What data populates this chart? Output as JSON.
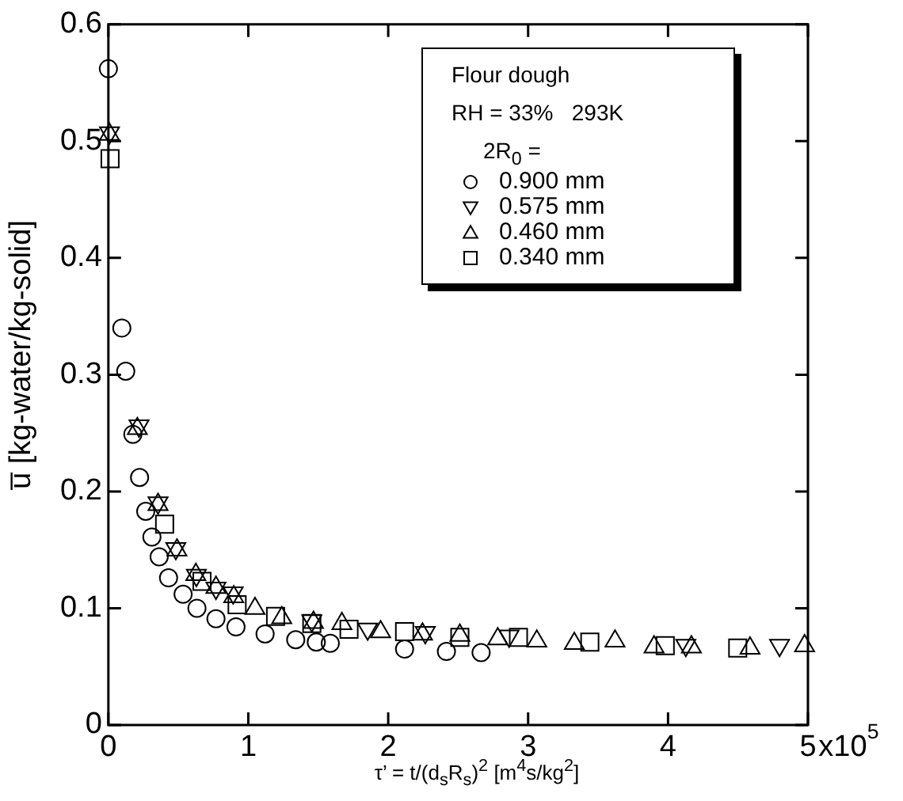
{
  "chart_data": {
    "type": "scatter",
    "xlabel": "τ’ = t/(d$_{s}$R$_{s}$)$^{2}$    [m$^{4}$s/kg$^{2}$]",
    "ylabel": "u̅ [kg-water/kg-solid]",
    "annotations": [
      "Flour dough",
      "RH = 33%   293K",
      "x10$^{5}$"
    ],
    "legend_title": "2R$_{0}$ =",
    "legend": "top right",
    "grid": false,
    "xlim": [
      0,
      5
    ],
    "xticks": [
      0,
      1,
      2,
      3,
      4,
      5
    ],
    "ylim": [
      0,
      0.6
    ],
    "yticks": [
      0,
      0.1,
      0.2,
      0.3,
      0.4,
      0.5,
      0.6
    ],
    "series": [
      {
        "name": "0.900 mm",
        "color": "#000000",
        "marker": "circle",
        "x": [
          0,
          0.096,
          0.124,
          0.175,
          0.223,
          0.267,
          0.311,
          0.363,
          0.43,
          0.534,
          0.633,
          0.769,
          0.912,
          1.12,
          1.339,
          1.486,
          1.586,
          2.117,
          2.416,
          2.664
        ],
        "values": [
          0.562,
          0.34,
          0.303,
          0.249,
          0.212,
          0.183,
          0.161,
          0.144,
          0.126,
          0.112,
          0.1,
          0.091,
          0.084,
          0.078,
          0.073,
          0.071,
          0.07,
          0.065,
          0.063,
          0.062
        ]
      },
      {
        "name": "0.575 mm",
        "color": "#000000",
        "marker": "triangle_down",
        "x": [
          0.008,
          0.219,
          0.355,
          0.482,
          0.629,
          0.769,
          0.892,
          1.454,
          1.853,
          2.265,
          2.864,
          4.127,
          4.797
        ],
        "values": [
          0.506,
          0.255,
          0.189,
          0.15,
          0.127,
          0.116,
          0.112,
          0.088,
          0.081,
          0.078,
          0.075,
          0.067,
          0.067
        ]
      },
      {
        "name": "0.460 mm",
        "color": "#000000",
        "marker": "triangle",
        "x": [
          0.008,
          0.207,
          0.355,
          0.49,
          0.625,
          0.769,
          0.896,
          1.048,
          1.239,
          1.466,
          1.669,
          1.946,
          2.245,
          2.512,
          2.783,
          3.062,
          3.33,
          3.621,
          3.9,
          4.167,
          4.586,
          4.976
        ],
        "values": [
          0.507,
          0.255,
          0.19,
          0.151,
          0.13,
          0.119,
          0.111,
          0.101,
          0.093,
          0.089,
          0.088,
          0.081,
          0.079,
          0.078,
          0.075,
          0.073,
          0.071,
          0.073,
          0.068,
          0.068,
          0.067,
          0.069
        ]
      },
      {
        "name": "0.340 mm",
        "color": "#000000",
        "marker": "square",
        "x": [
          0.012,
          0.402,
          0.669,
          0.92,
          1.195,
          1.454,
          1.72,
          2.117,
          2.512,
          2.931,
          3.441,
          3.98,
          4.498
        ],
        "values": [
          0.485,
          0.172,
          0.123,
          0.103,
          0.093,
          0.087,
          0.082,
          0.08,
          0.075,
          0.075,
          0.071,
          0.068,
          0.066
        ]
      }
    ]
  }
}
